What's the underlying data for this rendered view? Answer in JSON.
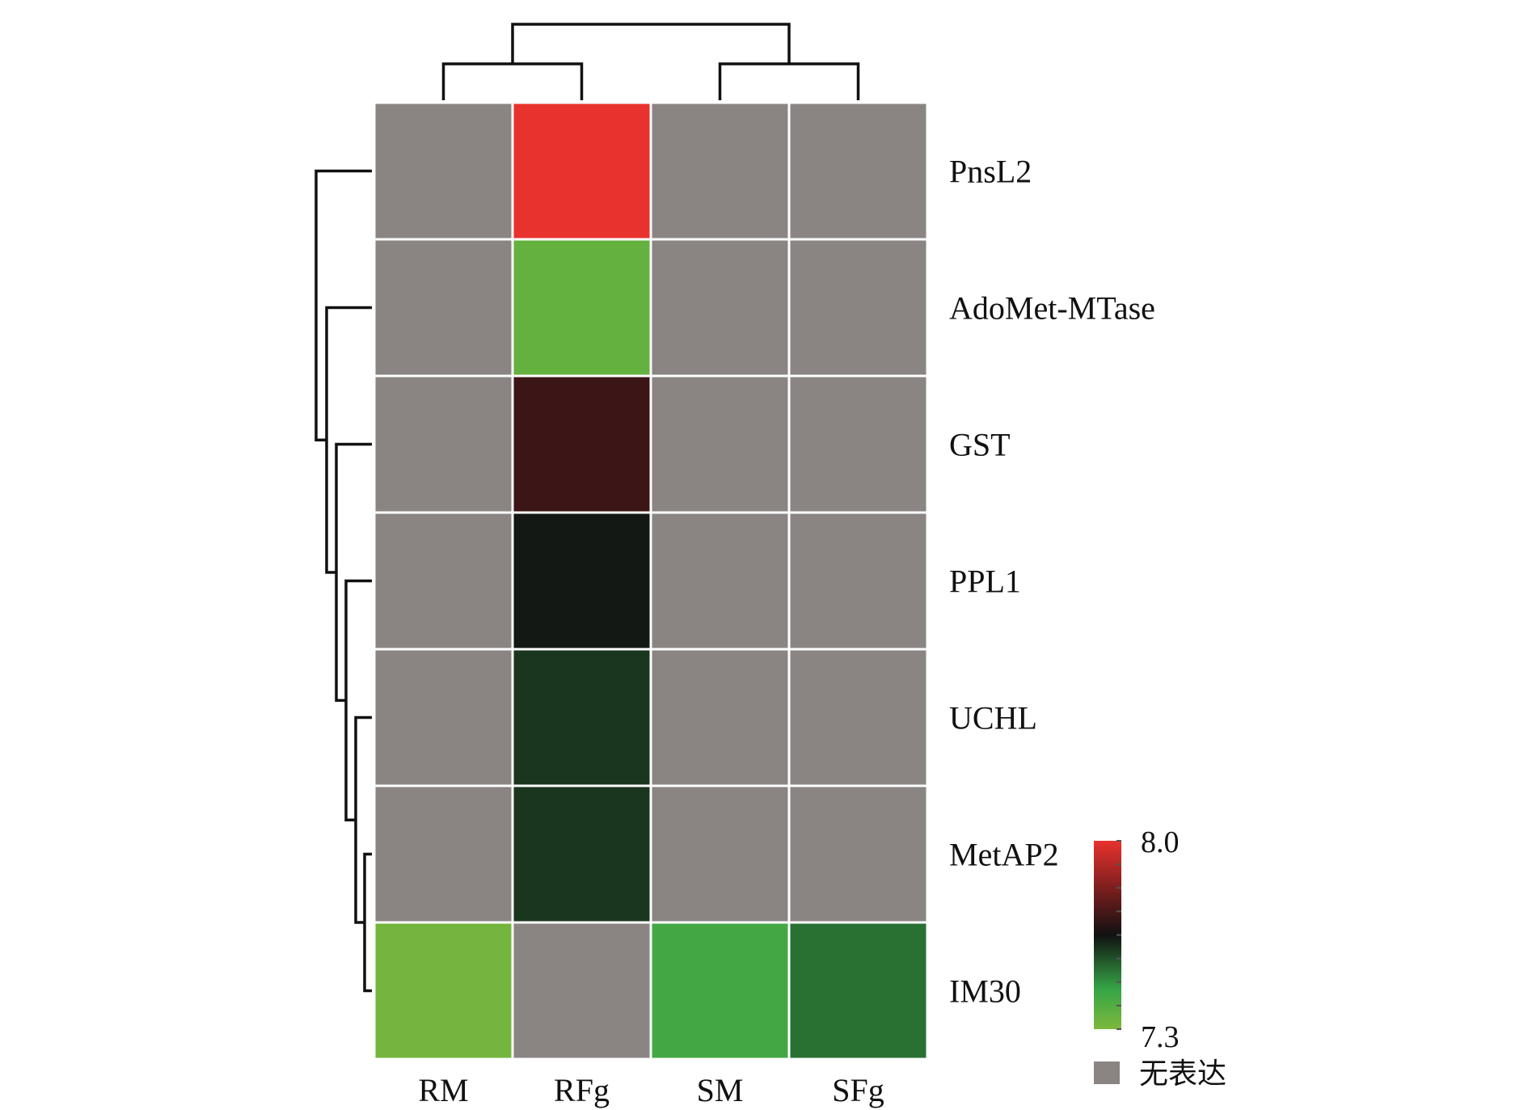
{
  "chart_data": {
    "type": "heatmap",
    "title": "",
    "rows": [
      "PnsL2",
      "AdoMet-MTase",
      "GST",
      "PPL1",
      "UCHL",
      "MetAP2",
      "IM30"
    ],
    "columns": [
      "RM",
      "RFg",
      "SM",
      "SFg"
    ],
    "values": [
      [
        null,
        8.0,
        null,
        null
      ],
      [
        null,
        7.35,
        null,
        null
      ],
      [
        null,
        7.72,
        null,
        null
      ],
      [
        null,
        7.64,
        null,
        null
      ],
      [
        null,
        7.6,
        null,
        null
      ],
      [
        null,
        7.6,
        null,
        null
      ],
      [
        7.32,
        null,
        7.42,
        7.52
      ]
    ],
    "color_scale": {
      "min": 7.3,
      "max": 8.0,
      "min_label": "7.3",
      "max_label": "8.0",
      "stops": [
        {
          "value": 7.3,
          "color": "#7db83d"
        },
        {
          "value": 7.45,
          "color": "#35a446"
        },
        {
          "value": 7.65,
          "color": "#111111"
        },
        {
          "value": 7.82,
          "color": "#7a1e1e"
        },
        {
          "value": 8.0,
          "color": "#e8322e"
        }
      ]
    },
    "missing": {
      "color": "#8a8583",
      "label": "无表达"
    },
    "row_dendrogram": true,
    "column_dendrogram": true,
    "legend_position": "bottom-right"
  }
}
